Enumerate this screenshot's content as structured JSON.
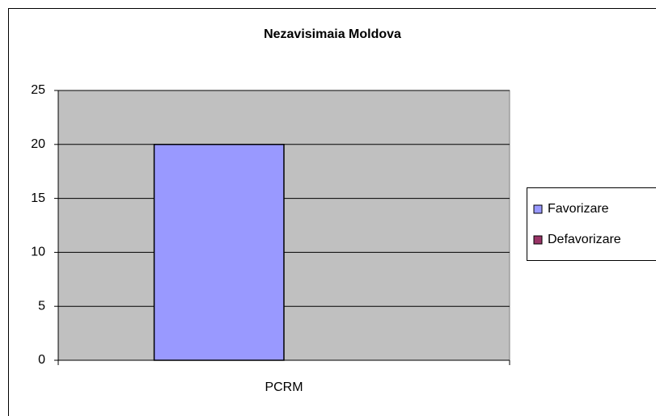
{
  "chart_data": {
    "type": "bar",
    "title": "Nezavisimaia Moldova",
    "categories": [
      "PCRM"
    ],
    "series": [
      {
        "name": "Favorizare",
        "color": "#9999ff",
        "values": [
          20
        ]
      },
      {
        "name": "Defavorizare",
        "color": "#993366",
        "values": [
          0
        ]
      }
    ],
    "ylim": [
      0,
      25
    ],
    "yticks": [
      0,
      5,
      10,
      15,
      20,
      25
    ],
    "grid": true,
    "legend": "right"
  }
}
